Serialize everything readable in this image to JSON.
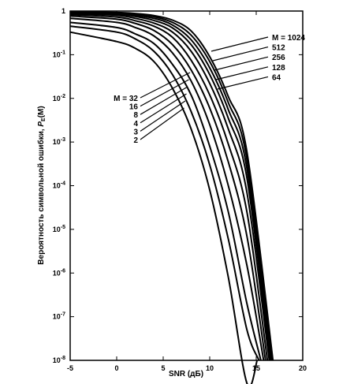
{
  "chart_data": {
    "type": "line",
    "title": "",
    "xlabel": "SNR (дБ)",
    "ylabel": "Вероятность символьной ошибки, P_E(M)",
    "ylabel_text": "Вероятность символьной ошибки, ",
    "ylabel_symbol": "P",
    "ylabel_subscript": "E",
    "ylabel_arg": "(M)",
    "xlim": [
      -5,
      20
    ],
    "ylim": [
      1e-08,
      1
    ],
    "yscale": "log",
    "x_ticks": [
      "-5",
      "0",
      "5",
      "10",
      "15",
      "20"
    ],
    "y_ticks": [
      {
        "label": "1"
      },
      {
        "base": "10",
        "exp": "-1"
      },
      {
        "base": "10",
        "exp": "-2"
      },
      {
        "base": "10",
        "exp": "-3"
      },
      {
        "base": "10",
        "exp": "-4"
      },
      {
        "base": "10",
        "exp": "-5"
      },
      {
        "base": "10",
        "exp": "-6"
      },
      {
        "base": "10",
        "exp": "-7"
      },
      {
        "base": "10",
        "exp": "-8"
      }
    ],
    "series": [
      {
        "name": "2",
        "x": [
          -5,
          0,
          2,
          4,
          6,
          8,
          10,
          12,
          14,
          15.1
        ],
        "y": [
          0.33,
          0.2,
          0.14,
          0.07,
          0.017,
          0.002,
          8e-05,
          8e-07,
          3e-09,
          1e-08
        ]
      },
      {
        "name": "3",
        "x": [
          -5,
          0,
          2,
          4,
          6,
          8,
          10,
          12,
          14,
          15.3
        ],
        "y": [
          0.45,
          0.33,
          0.23,
          0.12,
          0.035,
          0.005,
          0.0003,
          6e-06,
          5e-08,
          1e-08
        ]
      },
      {
        "name": "4",
        "x": [
          -5,
          0,
          2,
          4,
          6,
          8,
          10,
          12,
          14,
          15.5
        ],
        "y": [
          0.55,
          0.42,
          0.3,
          0.18,
          0.06,
          0.012,
          0.0008,
          2.5e-05,
          2e-07,
          1e-08
        ]
      },
      {
        "name": "8",
        "x": [
          -5,
          0,
          2,
          4,
          6,
          8,
          10,
          12,
          14,
          15.8
        ],
        "y": [
          0.68,
          0.55,
          0.42,
          0.27,
          0.11,
          0.025,
          0.0025,
          0.0001,
          1.5e-06,
          1e-08
        ]
      },
      {
        "name": "16",
        "x": [
          -5,
          0,
          2,
          4,
          6,
          8,
          10,
          12,
          14,
          16.0
        ],
        "y": [
          0.77,
          0.65,
          0.52,
          0.36,
          0.17,
          0.045,
          0.006,
          0.00035,
          7e-06,
          1e-08
        ]
      },
      {
        "name": "32",
        "x": [
          -5,
          0,
          2,
          4,
          6,
          8,
          10,
          12,
          14,
          16.2
        ],
        "y": [
          0.83,
          0.73,
          0.6,
          0.45,
          0.25,
          0.075,
          0.012,
          0.0009,
          2.5e-05,
          1e-08
        ]
      },
      {
        "name": "64",
        "x": [
          -5,
          0,
          2,
          4,
          6,
          8,
          10,
          12,
          14,
          16.4
        ],
        "y": [
          0.88,
          0.8,
          0.68,
          0.53,
          0.33,
          0.12,
          0.022,
          0.002,
          7e-05,
          1e-08
        ]
      },
      {
        "name": "128",
        "x": [
          -5,
          0,
          2,
          4,
          6,
          8,
          10,
          12,
          14,
          16.5
        ],
        "y": [
          0.91,
          0.85,
          0.75,
          0.61,
          0.41,
          0.17,
          0.035,
          0.0035,
          0.00015,
          1e-08
        ]
      },
      {
        "name": "256",
        "x": [
          -5,
          0,
          2,
          4,
          6,
          8,
          10,
          12,
          14,
          16.6
        ],
        "y": [
          0.93,
          0.88,
          0.8,
          0.68,
          0.48,
          0.22,
          0.05,
          0.0055,
          0.00025,
          1e-08
        ]
      },
      {
        "name": "512",
        "x": [
          -5,
          0,
          2,
          4,
          6,
          8,
          10,
          12,
          14,
          16.7
        ],
        "y": [
          0.95,
          0.91,
          0.85,
          0.74,
          0.55,
          0.28,
          0.07,
          0.008,
          0.0004,
          1e-08
        ]
      },
      {
        "name": "1024",
        "x": [
          -5,
          0,
          2,
          4,
          6,
          8,
          10,
          12,
          14,
          16.8
        ],
        "y": [
          0.96,
          0.93,
          0.88,
          0.79,
          0.62,
          0.35,
          0.09,
          0.011,
          0.0006,
          1e-08
        ]
      }
    ],
    "legend_labels": {
      "left": [
        "M = 32",
        "16",
        "8",
        "4",
        "3",
        "2"
      ],
      "right": [
        "M = 1024",
        "512",
        "256",
        "128",
        "64"
      ]
    },
    "grid": false
  }
}
